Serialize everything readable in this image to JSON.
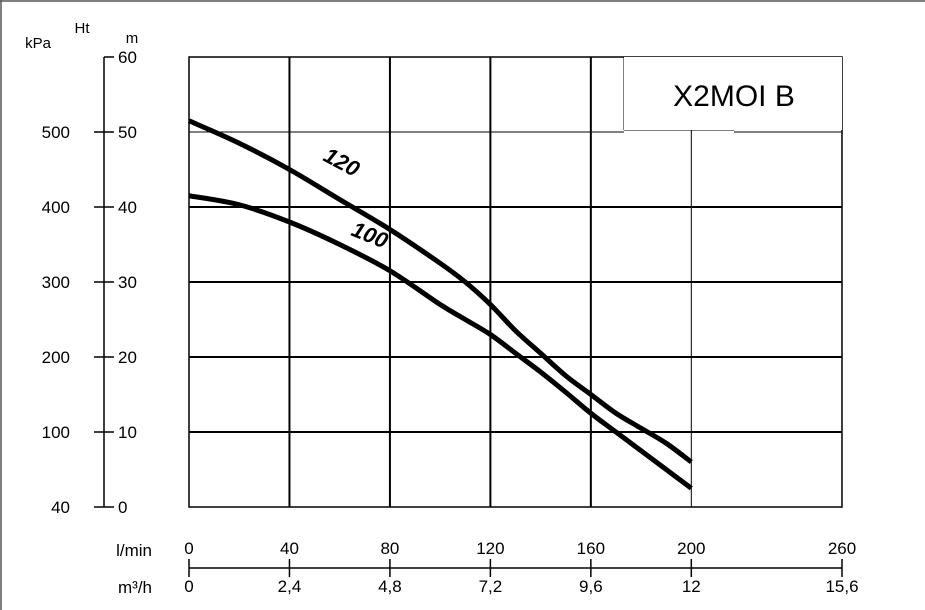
{
  "chart_data": {
    "type": "line",
    "title": "X2MOI B",
    "y_left_outer": {
      "label": "kPa",
      "ticks": [
        "40",
        "100",
        "200",
        "300",
        "400",
        "500"
      ]
    },
    "y_left_inner": {
      "label_top": "Ht",
      "label_unit": "m",
      "range": [
        0,
        60
      ],
      "ticks": [
        "0",
        "10",
        "20",
        "30",
        "40",
        "50",
        "60"
      ]
    },
    "x_primary": {
      "label": "l/min",
      "range": [
        0,
        260
      ],
      "ticks": [
        "0",
        "40",
        "80",
        "120",
        "160",
        "200",
        "260"
      ]
    },
    "x_secondary": {
      "label": "m³/h",
      "ticks": [
        "0",
        "2,4",
        "4,8",
        "7,2",
        "9,6",
        "12",
        "15,6"
      ]
    },
    "grid": true,
    "series": [
      {
        "name": "120",
        "x": [
          0,
          20,
          40,
          60,
          80,
          100,
          110,
          120,
          130,
          140,
          150,
          160,
          170,
          180,
          190,
          200
        ],
        "y": [
          51.5,
          48.5,
          45,
          41,
          37,
          32.5,
          30,
          27,
          23.5,
          20.5,
          17.5,
          15,
          12.5,
          10.5,
          8.5,
          6
        ]
      },
      {
        "name": "100",
        "x": [
          0,
          20,
          40,
          60,
          80,
          100,
          110,
          120,
          130,
          140,
          150,
          160,
          170,
          180,
          190,
          200
        ],
        "y": [
          41.5,
          40.3,
          38,
          35,
          31.5,
          27,
          25,
          23,
          20.5,
          18,
          15.3,
          12.5,
          10,
          7.5,
          5,
          2.5
        ]
      }
    ]
  }
}
